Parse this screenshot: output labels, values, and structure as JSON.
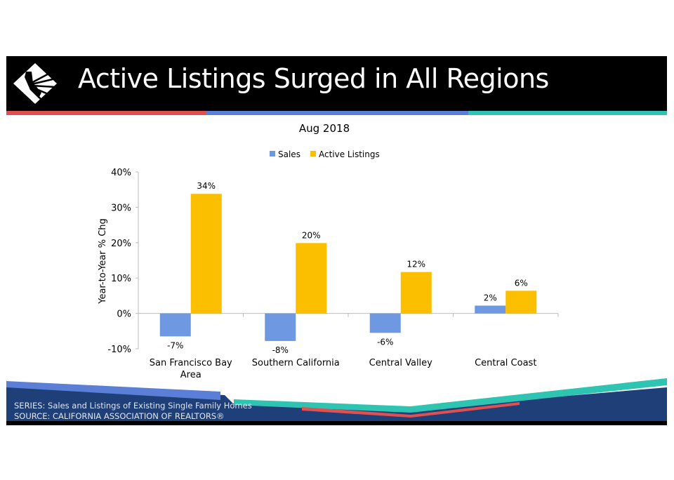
{
  "header": {
    "title": "Active Listings Surged in All Regions"
  },
  "footer": {
    "series": "SERIES: Sales and Listings of Existing Single Family Homes",
    "source": "SOURCE:  CALIFORNIA ASSOCIATION OF REALTORS®"
  },
  "colors": {
    "sales": "#6f98e3",
    "listings": "#fbbf00",
    "red": "#e05050",
    "blue": "#5b7fd6",
    "teal": "#2fc4b2",
    "navy": "#1f3f78"
  },
  "chart_data": {
    "type": "bar",
    "title": "Aug 2018",
    "ylabel": "Year-to-Year % Chg",
    "xlabel": "",
    "ylim": [
      -10,
      40
    ],
    "yticks": [
      "-10%",
      "0%",
      "10%",
      "20%",
      "30%",
      "40%"
    ],
    "ytick_values": [
      -10,
      0,
      10,
      20,
      30,
      40
    ],
    "legend_position": "top-center",
    "categories": [
      [
        "San Francisco Bay",
        "Area"
      ],
      [
        "Southern California"
      ],
      [
        "Central Valley"
      ],
      [
        "Central Coast"
      ]
    ],
    "series": [
      {
        "name": "Sales",
        "values": [
          -6.5,
          -7.8,
          -5.5,
          2.2
        ],
        "labels": [
          "-7%",
          "-8%",
          "-6%",
          "2%"
        ]
      },
      {
        "name": "Active Listings",
        "values": [
          33.8,
          19.9,
          11.7,
          6.4
        ],
        "labels": [
          "34%",
          "20%",
          "12%",
          "6%"
        ]
      }
    ]
  }
}
